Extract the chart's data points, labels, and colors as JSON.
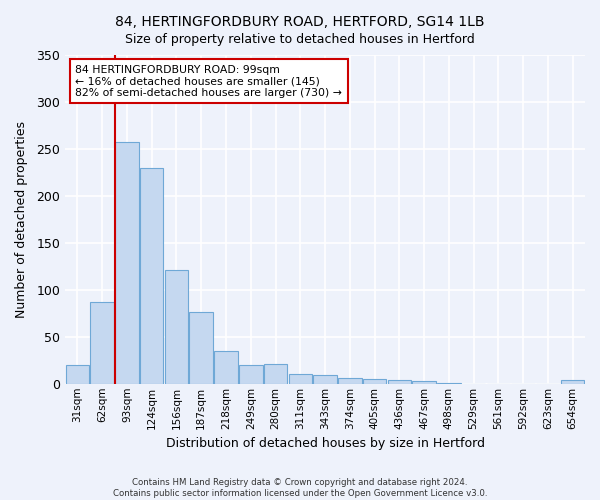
{
  "title1": "84, HERTINGFORDBURY ROAD, HERTFORD, SG14 1LB",
  "title2": "Size of property relative to detached houses in Hertford",
  "xlabel": "Distribution of detached houses by size in Hertford",
  "ylabel": "Number of detached properties",
  "categories": [
    "31sqm",
    "62sqm",
    "93sqm",
    "124sqm",
    "156sqm",
    "187sqm",
    "218sqm",
    "249sqm",
    "280sqm",
    "311sqm",
    "343sqm",
    "374sqm",
    "405sqm",
    "436sqm",
    "467sqm",
    "498sqm",
    "529sqm",
    "561sqm",
    "592sqm",
    "623sqm",
    "654sqm"
  ],
  "values": [
    20,
    87,
    257,
    230,
    121,
    76,
    35,
    20,
    21,
    10,
    9,
    6,
    5,
    4,
    3,
    1,
    0,
    0,
    0,
    0,
    4
  ],
  "bar_color": "#c5d8f0",
  "bar_edge_color": "#6fa8d6",
  "background_color": "#eef2fb",
  "grid_color": "#ffffff",
  "annotation_text": "84 HERTINGFORDBURY ROAD: 99sqm\n← 16% of detached houses are smaller (145)\n82% of semi-detached houses are larger (730) →",
  "annotation_box_color": "#ffffff",
  "annotation_box_edge": "#cc0000",
  "vline_color": "#cc0000",
  "vline_x": 1.5,
  "ylim": [
    0,
    350
  ],
  "yticks": [
    0,
    50,
    100,
    150,
    200,
    250,
    300,
    350
  ],
  "footer1": "Contains HM Land Registry data © Crown copyright and database right 2024.",
  "footer2": "Contains public sector information licensed under the Open Government Licence v3.0."
}
